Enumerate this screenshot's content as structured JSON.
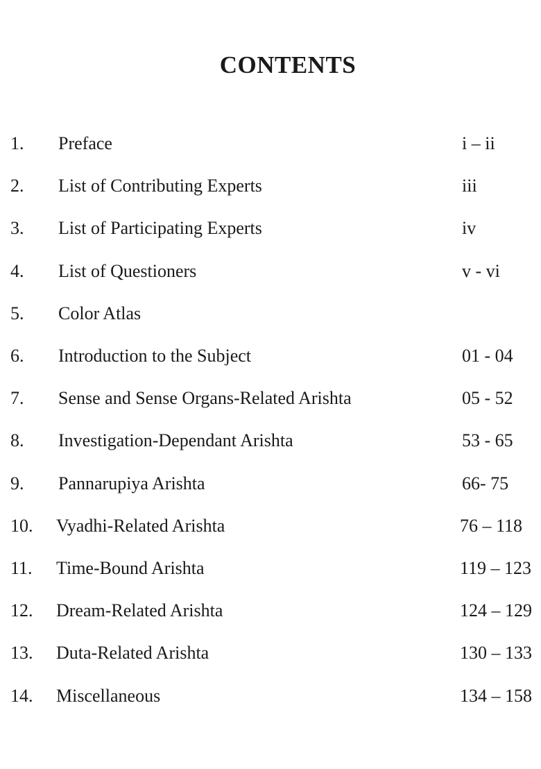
{
  "title": "CONTENTS",
  "entries": [
    {
      "num": "1.",
      "label": "Preface",
      "pages": "i – ii"
    },
    {
      "num": "2.",
      "label": "List of Contributing Experts",
      "pages": "iii"
    },
    {
      "num": "3.",
      "label": "List of Participating Experts",
      "pages": "iv"
    },
    {
      "num": "4.",
      "label": "List of Questioners",
      "pages": "v - vi"
    },
    {
      "num": "5.",
      "label": "Color Atlas",
      "pages": ""
    },
    {
      "num": "6.",
      "label": "Introduction to the Subject",
      "pages": "01 - 04"
    },
    {
      "num": "7.",
      "label": "Sense and Sense Organs-Related Arishta",
      "pages": "05 - 52"
    },
    {
      "num": "8.",
      "label": "Investigation-Dependant Arishta",
      "pages": "53 - 65"
    },
    {
      "num": "9.",
      "label": "Pannarupiya Arishta",
      "pages": "66- 75"
    },
    {
      "num": "10.",
      "label": "Vyadhi-Related Arishta",
      "pages": "76 – 118"
    },
    {
      "num": "11.",
      "label": "Time-Bound Arishta",
      "pages": "119 – 123"
    },
    {
      "num": "12.",
      "label": "Dream-Related Arishta",
      "pages": "124 – 129"
    },
    {
      "num": "13.",
      "label": "Duta-Related Arishta",
      "pages": "130 – 133"
    },
    {
      "num": "14.",
      "label": "Miscellaneous",
      "pages": "134 – 158"
    }
  ]
}
